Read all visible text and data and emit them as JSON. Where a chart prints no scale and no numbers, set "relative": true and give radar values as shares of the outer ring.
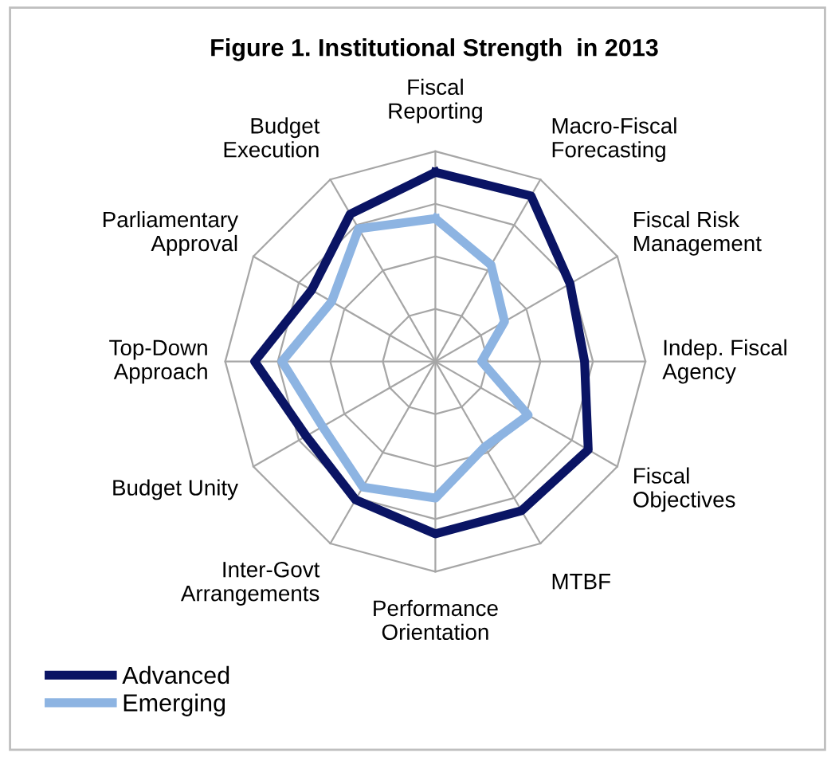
{
  "chart_data": {
    "type": "radar",
    "title": "Figure 1. Institutional Strength  in 2013",
    "relative": true,
    "grid": true,
    "legend": "bottom left",
    "line_style": "solid",
    "marker": "none",
    "categories": [
      "Fiscal\nReporting",
      "Macro-Fiscal\nForecasting",
      "Fiscal Risk\nManagement",
      "Indep. Fiscal\nAgency",
      "Fiscal\nObjectives",
      "MTBF",
      "Performance\nOrientation",
      "Inter-Govt\nArrangements",
      "Budget Unity",
      "Top-Down\nApproach",
      "Parliamentary\nApproval",
      "Budget\nExecution"
    ],
    "series": [
      {
        "name": "Advanced",
        "color": "#0a1464",
        "values": [
          0.9,
          0.91,
          0.74,
          0.71,
          0.84,
          0.82,
          0.82,
          0.76,
          0.71,
          0.86,
          0.68,
          0.81
        ]
      },
      {
        "name": "Emerging",
        "color": "#8db4e2",
        "values": [
          0.68,
          0.53,
          0.38,
          0.22,
          0.51,
          0.47,
          0.65,
          0.69,
          0.62,
          0.73,
          0.57,
          0.73
        ]
      }
    ]
  }
}
